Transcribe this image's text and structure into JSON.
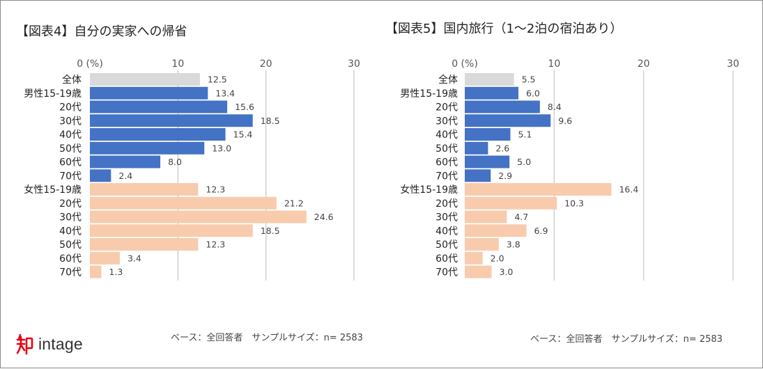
{
  "colors": {
    "total": "#d9d9d9",
    "male": "#4472c4",
    "female": "#f8cbad",
    "grid": "#d0d0d0",
    "logo_red": "#e60012"
  },
  "chart_data": [
    {
      "type": "bar",
      "orientation": "horizontal",
      "title": "【図表4】自分の実家への帰省",
      "axis_unit_label": "0 (%)",
      "xlim": [
        0,
        30
      ],
      "ticks": [
        0,
        10,
        20,
        30
      ],
      "tick_labels": [
        "0 (%)",
        "10",
        "20",
        "30"
      ],
      "categories": [
        "全体",
        "男性15-19歳",
        "20代",
        "30代",
        "40代",
        "50代",
        "60代",
        "70代",
        "女性15-19歳",
        "20代",
        "30代",
        "40代",
        "50代",
        "60代",
        "70代"
      ],
      "groups": [
        "total",
        "male",
        "male",
        "male",
        "male",
        "male",
        "male",
        "male",
        "female",
        "female",
        "female",
        "female",
        "female",
        "female",
        "female"
      ],
      "values": [
        12.5,
        13.4,
        15.6,
        18.5,
        15.4,
        13.0,
        8.0,
        2.4,
        12.3,
        21.2,
        24.6,
        18.5,
        12.3,
        3.4,
        1.3
      ],
      "value_labels": [
        "12.5",
        "13.4",
        "15.6",
        "18.5",
        "15.4",
        "13.0",
        "8.0",
        "2.4",
        "12.3",
        "21.2",
        "24.6",
        "18.5",
        "12.3",
        "3.4",
        "1.3"
      ],
      "footnote": "ベース：全回答者　サンプルサイズ：n= 2583"
    },
    {
      "type": "bar",
      "orientation": "horizontal",
      "title": "【図表5】国内旅行（1～2泊の宿泊あり）",
      "axis_unit_label": "0 (%)",
      "xlim": [
        0,
        30
      ],
      "ticks": [
        0,
        10,
        20,
        30
      ],
      "tick_labels": [
        "0 (%)",
        "10",
        "20",
        "30"
      ],
      "categories": [
        "全体",
        "男性15-19歳",
        "20代",
        "30代",
        "40代",
        "50代",
        "60代",
        "70代",
        "女性15-19歳",
        "20代",
        "30代",
        "40代",
        "50代",
        "60代",
        "70代"
      ],
      "groups": [
        "total",
        "male",
        "male",
        "male",
        "male",
        "male",
        "male",
        "male",
        "female",
        "female",
        "female",
        "female",
        "female",
        "female",
        "female"
      ],
      "values": [
        5.5,
        6.0,
        8.4,
        9.6,
        5.1,
        2.6,
        5.0,
        2.9,
        16.4,
        10.3,
        4.7,
        6.9,
        3.8,
        2.0,
        3.0
      ],
      "value_labels": [
        "5.5",
        "6.0",
        "8.4",
        "9.6",
        "5.1",
        "2.6",
        "5.0",
        "2.9",
        "16.4",
        "10.3",
        "4.7",
        "6.9",
        "3.8",
        "2.0",
        "3.0"
      ],
      "footnote": "ベース：全回答者　サンプルサイズ：n= 2583"
    }
  ],
  "logo": {
    "mark": "知",
    "text": "intage"
  }
}
